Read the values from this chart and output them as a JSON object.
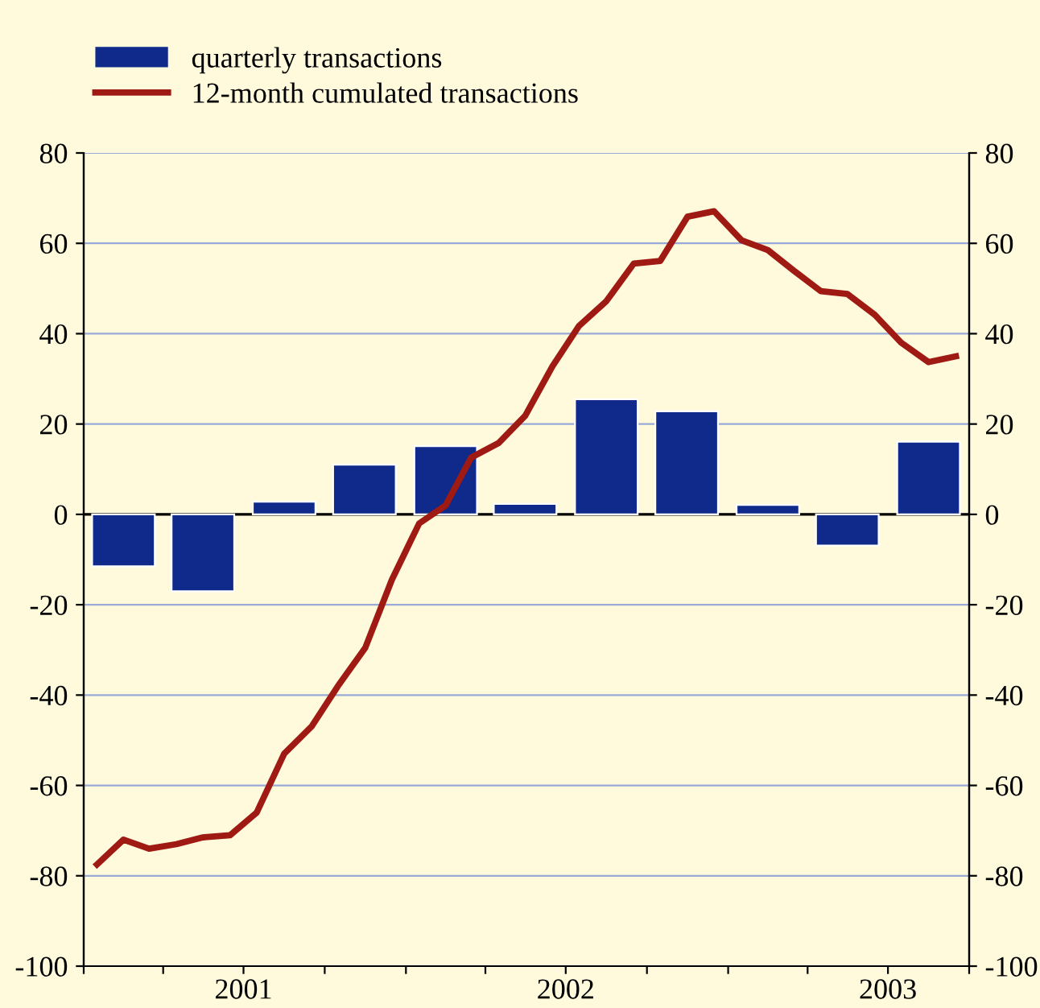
{
  "chart_data": {
    "type": "bar",
    "series": [
      {
        "name": "quarterly transactions",
        "color": "#0f2a8a",
        "x": [
          "2001-02-15",
          "2001-05-16",
          "2001-08-16",
          "2001-11-15",
          "2002-02-15",
          "2002-05-16",
          "2002-08-16",
          "2002-11-15",
          "2003-02-15",
          "2003-05-16",
          "2003-08-16"
        ],
        "values": [
          -11.5,
          -17,
          2.8,
          11,
          15.1,
          2.3,
          25.5,
          22.8,
          2.1,
          -6.9,
          16.1
        ]
      },
      {
        "name": "12-month cumulated transactions",
        "type": "line",
        "color": "#a01a14",
        "x": [
          "2001-01-16",
          "2001-02-15",
          "2001-03-16",
          "2001-04-16",
          "2001-05-16",
          "2001-06-16",
          "2001-07-16",
          "2001-08-16",
          "2001-09-16",
          "2001-10-16",
          "2001-11-16",
          "2001-12-16",
          "2002-01-16",
          "2002-02-15",
          "2002-03-16",
          "2002-04-16",
          "2002-05-16",
          "2002-06-16",
          "2002-07-16",
          "2002-08-16",
          "2002-09-16",
          "2002-10-16",
          "2002-11-16",
          "2002-12-16",
          "2003-01-16",
          "2003-02-15",
          "2003-03-16",
          "2003-04-16",
          "2003-05-16",
          "2003-06-16",
          "2003-07-16",
          "2003-08-16",
          "2003-09-16"
        ],
        "values": [
          -77.5,
          -72,
          -74,
          -73,
          -71.5,
          -71,
          -66,
          -53,
          -47,
          -38,
          -29.5,
          -14.5,
          -2,
          2,
          12.6,
          15.8,
          21.8,
          32.8,
          41.7,
          47.2,
          55.5,
          56.1,
          65.9,
          67.1,
          60.7,
          58.5,
          54,
          49.4,
          48.8,
          44.2,
          38,
          33.7,
          35
        ]
      }
    ],
    "xlim": [
      "2001-01-01",
      "2003-10-01"
    ],
    "xticks": [
      {
        "value": "2001-01-01",
        "label": null
      },
      {
        "value": "2001-04-01",
        "label": null
      },
      {
        "value": "2001-07-01",
        "label": "2001"
      },
      {
        "value": "2001-10-01",
        "label": null
      },
      {
        "value": "2002-01-01",
        "label": null
      },
      {
        "value": "2002-04-01",
        "label": null
      },
      {
        "value": "2002-07-01",
        "label": "2002"
      },
      {
        "value": "2002-10-01",
        "label": null
      },
      {
        "value": "2003-01-01",
        "label": null
      },
      {
        "value": "2003-04-01",
        "label": null
      },
      {
        "value": "2003-07-01",
        "label": "2003"
      },
      {
        "value": "2003-10-01",
        "label": null
      }
    ],
    "ylim": [
      -100,
      80
    ],
    "yticks": [
      -100,
      -80,
      -60,
      -40,
      -20,
      0,
      20,
      40,
      60,
      80
    ],
    "y2lim": [
      -100,
      80
    ],
    "y2ticks": [
      -100,
      -80,
      -60,
      -40,
      -20,
      0,
      20,
      40,
      60,
      80
    ],
    "ref_lines": [
      {
        "axis": "y",
        "value": 0,
        "color": "#000000"
      }
    ],
    "grid": "y",
    "legend": "top left"
  }
}
